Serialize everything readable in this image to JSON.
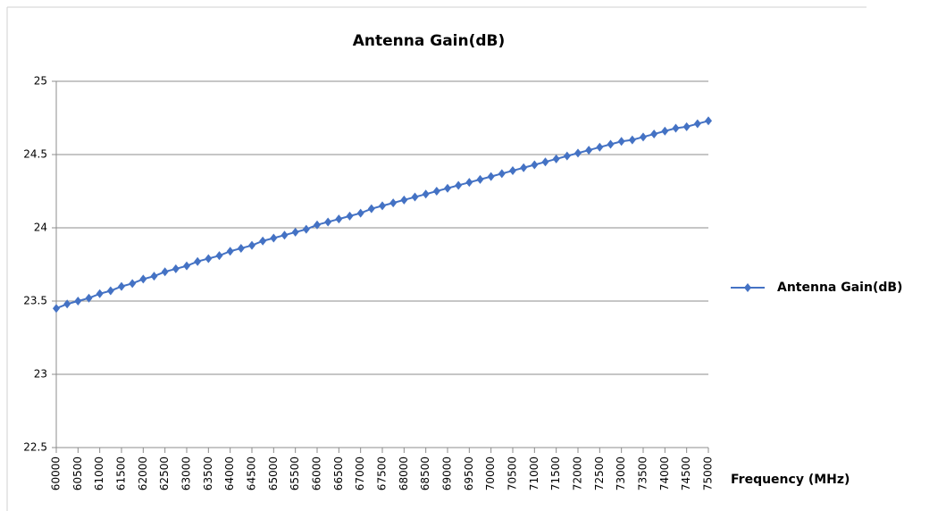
{
  "chart_data": {
    "type": "line",
    "title": "Antenna Gain(dB)",
    "x_label": "Frequency (MHz)",
    "x": [
      60000,
      60250,
      60500,
      60750,
      61000,
      61250,
      61500,
      61750,
      62000,
      62250,
      62500,
      62750,
      63000,
      63250,
      63500,
      63750,
      64000,
      64250,
      64500,
      64750,
      65000,
      65250,
      65500,
      65750,
      66000,
      66250,
      66500,
      66750,
      67000,
      67250,
      67500,
      67750,
      68000,
      68250,
      68500,
      68750,
      69000,
      69250,
      69500,
      69750,
      70000,
      70250,
      70500,
      70750,
      71000,
      71250,
      71500,
      71750,
      72000,
      72250,
      72500,
      72750,
      73000,
      73250,
      73500,
      73750,
      74000,
      74250,
      74500,
      74750,
      75000
    ],
    "series": [
      {
        "name": "Antenna Gain(dB)",
        "color": "#4472c4",
        "values": [
          23.45,
          23.48,
          23.5,
          23.52,
          23.55,
          23.57,
          23.6,
          23.62,
          23.65,
          23.67,
          23.7,
          23.72,
          23.74,
          23.77,
          23.79,
          23.81,
          23.84,
          23.86,
          23.88,
          23.91,
          23.93,
          23.95,
          23.97,
          23.99,
          24.02,
          24.04,
          24.06,
          24.08,
          24.1,
          24.13,
          24.15,
          24.17,
          24.19,
          24.21,
          24.23,
          24.25,
          24.27,
          24.29,
          24.31,
          24.33,
          24.35,
          24.37,
          24.39,
          24.41,
          24.43,
          24.45,
          24.47,
          24.49,
          24.51,
          24.53,
          24.55,
          24.57,
          24.59,
          24.6,
          24.62,
          24.64,
          24.66,
          24.68,
          24.69,
          24.71,
          24.73
        ]
      }
    ],
    "xlim": [
      60000,
      75000
    ],
    "xticks": [
      60000,
      60500,
      61000,
      61500,
      62000,
      62500,
      63000,
      63500,
      64000,
      64500,
      65000,
      65500,
      66000,
      66500,
      67000,
      67500,
      68000,
      68500,
      69000,
      69500,
      70000,
      70500,
      71000,
      71500,
      72000,
      72500,
      73000,
      73500,
      74000,
      74500,
      75000
    ],
    "ylim": [
      22.5,
      25
    ],
    "yticks": [
      22.5,
      23,
      23.5,
      24,
      24.5,
      25
    ],
    "grid": true,
    "legend": "right"
  }
}
